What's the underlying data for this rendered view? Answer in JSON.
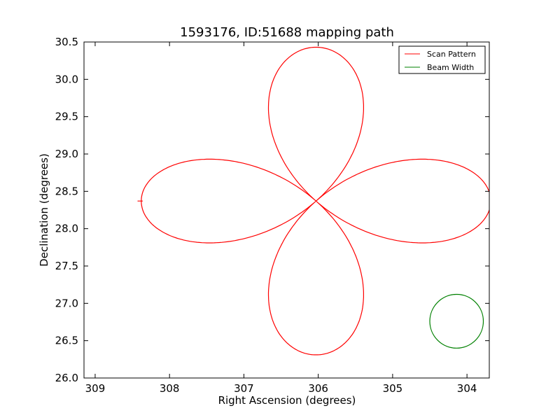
{
  "chart_data": {
    "type": "line",
    "title": "1593176, ID:51688 mapping path",
    "xlabel": "Right Ascension (degrees)",
    "ylabel": "Declination (degrees)",
    "xlim": [
      309.15,
      303.7
    ],
    "ylim": [
      26.0,
      30.5
    ],
    "x_inverted": true,
    "xticks": [
      "309",
      "308",
      "307",
      "306",
      "305",
      "304"
    ],
    "xtick_values": [
      309,
      308,
      307,
      306,
      305,
      304
    ],
    "yticks": [
      "26.0",
      "26.5",
      "27.0",
      "27.5",
      "28.0",
      "28.5",
      "29.0",
      "29.5",
      "30.0",
      "30.5"
    ],
    "ytick_values": [
      26.0,
      26.5,
      27.0,
      27.5,
      28.0,
      28.5,
      29.0,
      29.5,
      30.0,
      30.5
    ],
    "grid": false,
    "legend_position": "top-right",
    "series": [
      {
        "name": "Scan Pattern",
        "color": "#ff0000",
        "path_model": {
          "center": [
            306.03,
            28.37
          ],
          "petals": 4,
          "radius_ra": 2.35,
          "radius_dec": 2.06,
          "start_point": [
            308.4,
            28.37
          ]
        }
      },
      {
        "name": "Beam Width",
        "color": "#008000",
        "circle": {
          "center": [
            304.14,
            26.76
          ],
          "radius_deg": 0.36
        }
      }
    ],
    "legend": [
      {
        "label": "Scan Pattern",
        "color": "#ff0000"
      },
      {
        "label": "Beam Width",
        "color": "#008000"
      }
    ]
  }
}
